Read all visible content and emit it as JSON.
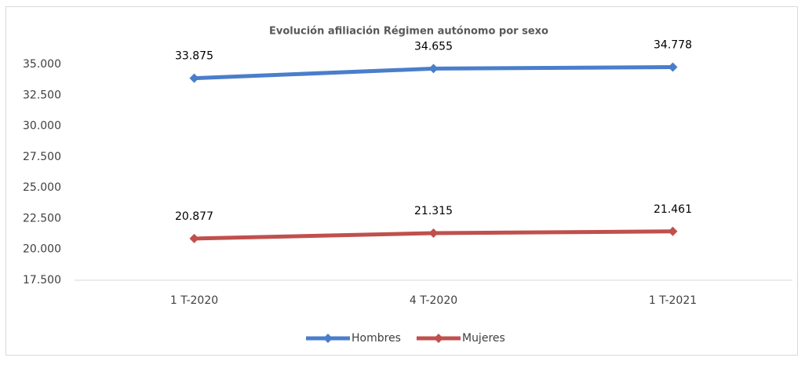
{
  "chart_data": {
    "type": "line",
    "title": "Evolución afiliación Régimen autónomo por sexo",
    "categories": [
      "1 T-2020",
      "4 T-2020",
      "1 T-2021"
    ],
    "series": [
      {
        "name": "Hombres",
        "color": "#4a7ecb",
        "values": [
          33875,
          34655,
          34778
        ],
        "value_labels": [
          "33.875",
          "34.655",
          "34.778"
        ]
      },
      {
        "name": "Mujeres",
        "color": "#c0504d",
        "values": [
          20877,
          21315,
          21461
        ],
        "value_labels": [
          "20.877",
          "21.315",
          "21.461"
        ]
      }
    ],
    "ylim": [
      17500,
      35000
    ],
    "yticks": [
      {
        "value": 17500,
        "label": "17.500"
      },
      {
        "value": 20000,
        "label": "20.000"
      },
      {
        "value": 22500,
        "label": "22.500"
      },
      {
        "value": 25000,
        "label": "25.000"
      },
      {
        "value": 27500,
        "label": "27.500"
      },
      {
        "value": 30000,
        "label": "30.000"
      },
      {
        "value": 32500,
        "label": "32.500"
      },
      {
        "value": 35000,
        "label": "35.000"
      }
    ],
    "legend": "bottom"
  }
}
